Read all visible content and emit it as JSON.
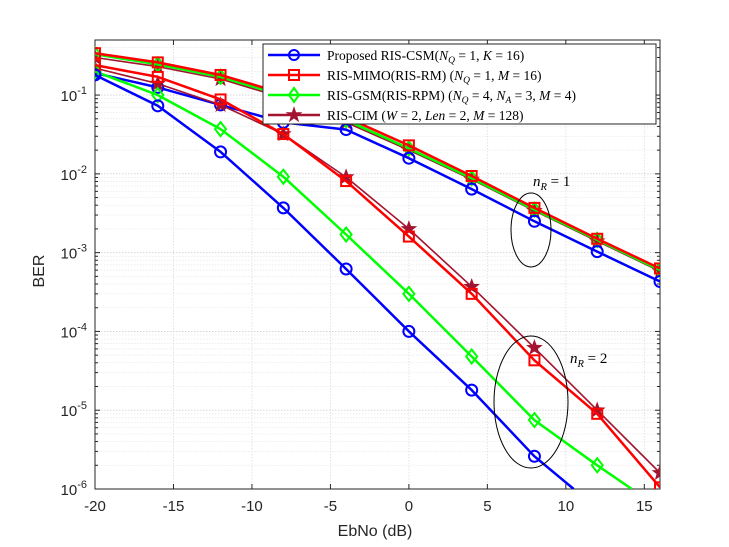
{
  "chart_data": {
    "type": "line",
    "title": "",
    "xlabel": "EbNo (dB)",
    "ylabel": "BER",
    "y_scale": "log",
    "xlim": [
      -20,
      16
    ],
    "ylim": [
      1e-06,
      0.5
    ],
    "x_ticks": [
      -20,
      -15,
      -10,
      -5,
      0,
      5,
      10,
      15
    ],
    "y_ticks": [
      {
        "value": 1e-06,
        "base": "10",
        "exp": "-6"
      },
      {
        "value": 1e-05,
        "base": "10",
        "exp": "-5"
      },
      {
        "value": 0.0001,
        "base": "10",
        "exp": "-4"
      },
      {
        "value": 0.001,
        "base": "10",
        "exp": "-3"
      },
      {
        "value": 0.01,
        "base": "10",
        "exp": "-2"
      },
      {
        "value": 0.1,
        "base": "10",
        "exp": "-1"
      }
    ],
    "grid": true,
    "legend_position": "top-right",
    "x": [
      -20,
      -16,
      -12,
      -8,
      -4,
      0,
      4,
      8,
      12,
      16
    ],
    "series": [
      {
        "name": "Proposed RIS-CSM",
        "legend_text": "Proposed RIS-CSM(N_Q = 1, K = 16)",
        "condition": "n_R = 1",
        "color": "#0000ff",
        "marker": "circle",
        "values": [
          0.19,
          0.125,
          0.075,
          0.045,
          0.0365,
          0.0158,
          0.0064,
          0.0025,
          0.00103,
          0.00043
        ]
      },
      {
        "name": "RIS-MIMO(RIS-RM)",
        "legend_text": "RIS-MIMO(RIS-RM) (N_Q = 1, M = 16)",
        "condition": "n_R = 1",
        "color": "#ff0000",
        "marker": "square",
        "values": [
          0.34,
          0.26,
          0.18,
          0.105,
          0.052,
          0.023,
          0.0094,
          0.0037,
          0.0015,
          0.00063
        ]
      },
      {
        "name": "RIS-GSM(RIS-RPM)",
        "legend_text": "RIS-GSM(RIS-RPM) (N_Q = 4, N_A = 3, M = 4)",
        "condition": "n_R = 1",
        "color": "#00ff00",
        "marker": "diamond",
        "values": [
          0.33,
          0.245,
          0.17,
          0.098,
          0.048,
          0.021,
          0.0088,
          0.0035,
          0.00145,
          0.0006
        ]
      },
      {
        "name": "RIS-CIM",
        "legend_text": "RIS-CIM (W = 2, Len = 2, M = 128)",
        "condition": "n_R = 1",
        "color": "#a2142f",
        "marker": "pentagram",
        "values": [
          0.3,
          0.23,
          0.16,
          0.092,
          0.045,
          0.02,
          0.0085,
          0.0034,
          0.0014,
          0.00058
        ]
      },
      {
        "name": "Proposed RIS-CSM",
        "condition": "n_R = 2",
        "color": "#0000ff",
        "marker": "circle",
        "x": [
          -20,
          -16,
          -12,
          -8,
          -4,
          0,
          4,
          8,
          10.5
        ],
        "values": [
          0.18,
          0.073,
          0.019,
          0.0037,
          0.00062,
          0.0001,
          1.8e-05,
          2.6e-06,
          1e-06
        ]
      },
      {
        "name": "RIS-MIMO(RIS-RM)",
        "condition": "n_R = 2",
        "color": "#ff0000",
        "marker": "square",
        "values": [
          0.24,
          0.17,
          0.088,
          0.032,
          0.0081,
          0.0016,
          0.0003,
          4.3e-05,
          9e-06,
          1.05e-06
        ]
      },
      {
        "name": "RIS-GSM(RIS-RPM)",
        "condition": "n_R = 2",
        "color": "#00ff00",
        "marker": "diamond",
        "x": [
          -20,
          -16,
          -12,
          -8,
          -4,
          0,
          4,
          8,
          12,
          14.2
        ],
        "values": [
          0.2,
          0.1,
          0.037,
          0.0092,
          0.0017,
          0.0003,
          4.8e-05,
          7.5e-06,
          2e-06,
          1e-06
        ]
      },
      {
        "name": "RIS-CIM",
        "condition": "n_R = 2",
        "color": "#a2142f",
        "marker": "pentagram",
        "values": [
          0.22,
          0.14,
          0.075,
          0.032,
          0.0091,
          0.002,
          0.00037,
          6.2e-05,
          1e-05,
          1.6e-06
        ]
      }
    ],
    "annotations": [
      {
        "label": "n_R = 1",
        "base": "n",
        "sub": "R",
        "rest": " = 1"
      },
      {
        "label": "n_R = 2",
        "base": "n",
        "sub": "R",
        "rest": " = 2"
      }
    ]
  }
}
